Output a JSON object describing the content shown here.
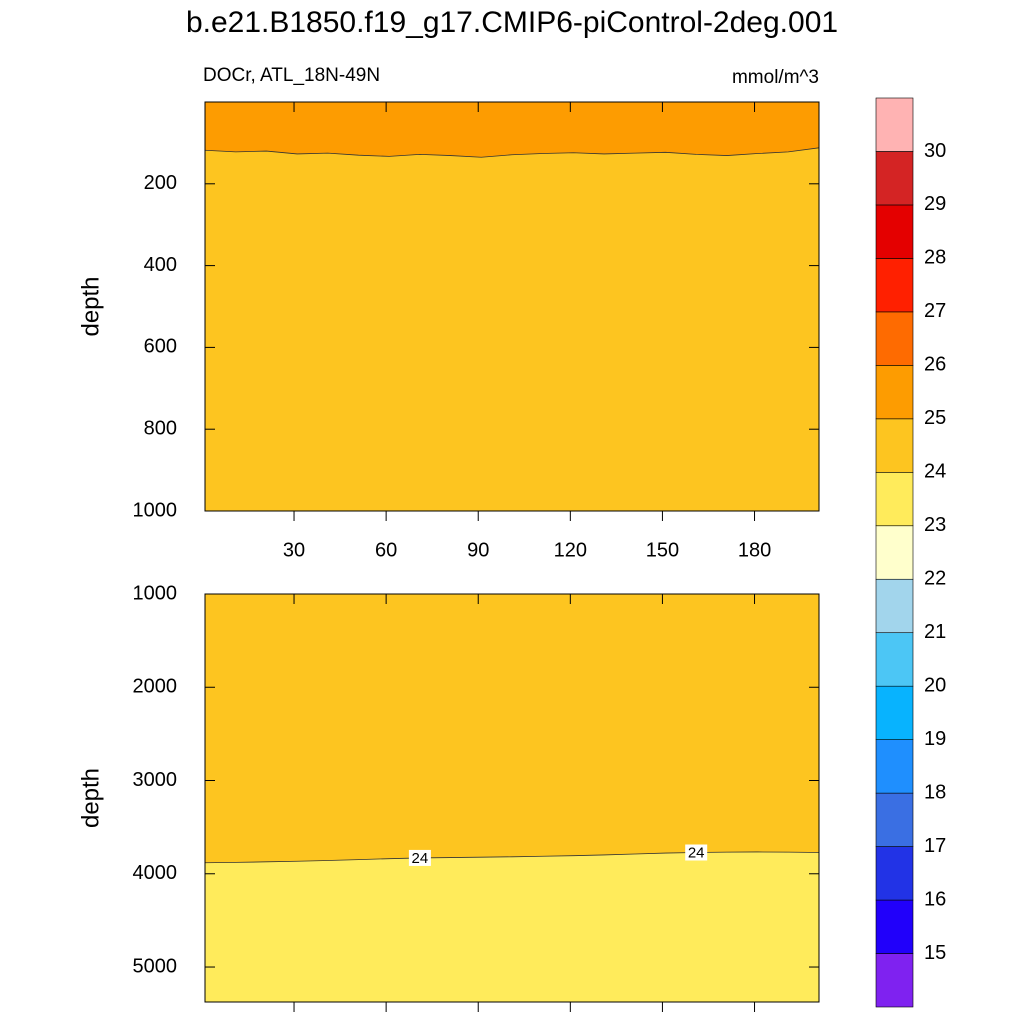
{
  "title": "b.e21.B1850.f19_g17.CMIP6-piControl-2deg.001",
  "chart_data": [
    {
      "type": "contour",
      "subtitle_left": "DOCr, ATL_18N-49N",
      "subtitle_right": "mmol/m^3",
      "ylabel": "depth",
      "xlim": [
        1,
        201
      ],
      "ylim": [
        0,
        1000
      ],
      "y_reversed": true,
      "xticks": [
        30,
        60,
        90,
        120,
        150,
        180
      ],
      "yticks": [
        200,
        400,
        600,
        800,
        1000
      ],
      "x": [
        1,
        11,
        21,
        31,
        41,
        51,
        61,
        71,
        81,
        91,
        101,
        111,
        121,
        131,
        141,
        151,
        161,
        171,
        181,
        191,
        201
      ],
      "contours": [
        {
          "level": 25,
          "labeled": false,
          "values": [
            118,
            122,
            120,
            127,
            125,
            130,
            133,
            128,
            131,
            135,
            129,
            126,
            124,
            127,
            125,
            123,
            128,
            131,
            126,
            122,
            112
          ]
        }
      ]
    },
    {
      "type": "contour",
      "ylabel": "depth",
      "xlim": [
        1,
        201
      ],
      "ylim": [
        1000,
        5375
      ],
      "y_reversed": true,
      "yticks": [
        1000,
        2000,
        3000,
        4000,
        5000
      ],
      "x": [
        1,
        11,
        21,
        31,
        41,
        51,
        61,
        71,
        81,
        91,
        101,
        111,
        121,
        131,
        141,
        151,
        161,
        171,
        181,
        191,
        201
      ],
      "contours": [
        {
          "level": 24,
          "labeled": true,
          "values": [
            3882,
            3878,
            3872,
            3866,
            3858,
            3848,
            3838,
            3830,
            3826,
            3822,
            3818,
            3812,
            3806,
            3798,
            3788,
            3778,
            3772,
            3768,
            3766,
            3768,
            3772
          ]
        }
      ]
    }
  ],
  "colorbar": {
    "levels": [
      15,
      16,
      17,
      18,
      19,
      20,
      21,
      22,
      23,
      24,
      25,
      26,
      27,
      28,
      29,
      30
    ],
    "colors": [
      "#7f22f0",
      "#2100fa",
      "#2233e6",
      "#3a6fe3",
      "#1f8ffe",
      "#08b3fe",
      "#4cc6f5",
      "#a2d5ec",
      "#ffffcc",
      "#ffeb5b",
      "#fdc520",
      "#fd9c01",
      "#fe6b01",
      "#ff2000",
      "#e40000",
      "#d42424",
      "#ffb3b3"
    ]
  }
}
